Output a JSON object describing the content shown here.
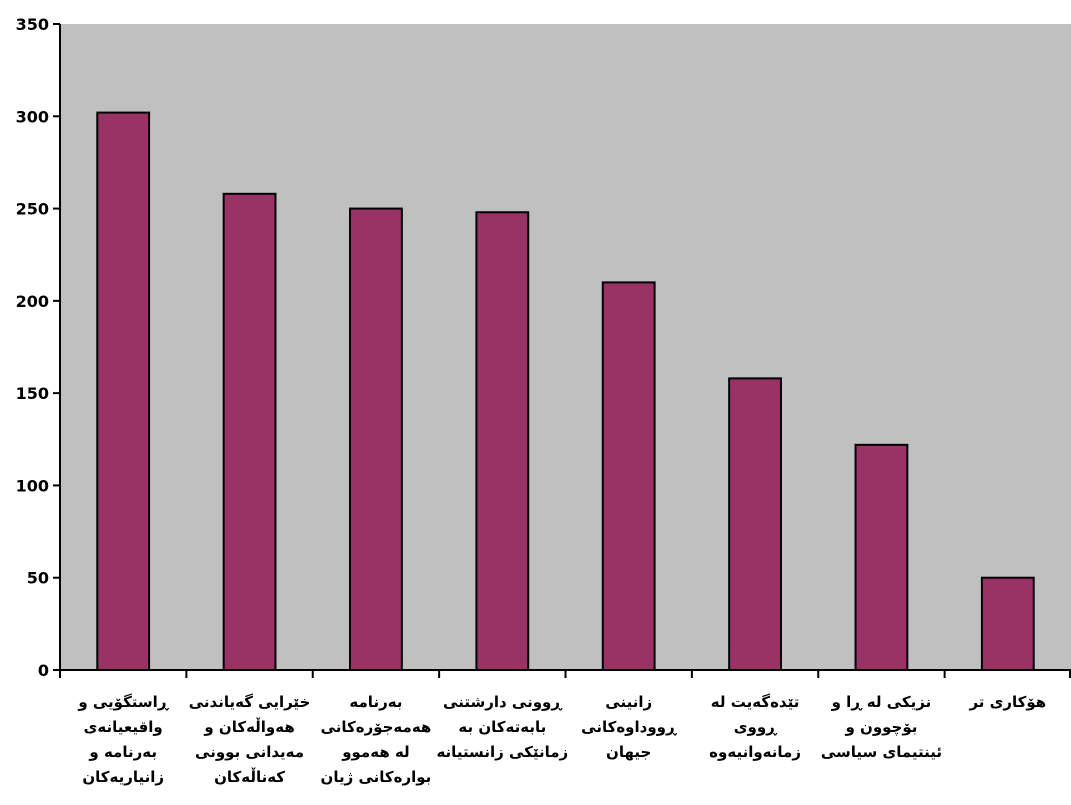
{
  "chart_data": {
    "type": "bar",
    "title": "",
    "xlabel": "",
    "ylabel": "",
    "ylim": [
      0,
      350
    ],
    "yticks": [
      0,
      50,
      100,
      150,
      200,
      250,
      300,
      350
    ],
    "grid": false,
    "legend": "none",
    "categories": [
      [
        "ڕاستگۆیی و",
        "واقیعیانەی",
        "بەرنامە و",
        "زانیاریەکان"
      ],
      [
        "خێرایی گەیاندنی",
        "هەواڵەکان و",
        "مەیدانی بوونی",
        "کەناڵەکان"
      ],
      [
        "بەرنامە",
        "هەمەجۆرەکانی",
        "لە هەموو",
        "بوارەکانی ژیان"
      ],
      [
        "ڕوونی دارشتنی",
        "بابەتەکان بە",
        "زمانێکی زانستیانە"
      ],
      [
        "زانینی",
        "ڕووداوەکانی",
        "جیهان"
      ],
      [
        "تێدەگەیت لە",
        "ڕووی",
        "زمانەوانیەوە"
      ],
      [
        "نزیکی لە ڕا و",
        "بۆچوون و",
        "ئینتیمای سیاسی"
      ],
      [
        "هۆکاری تر"
      ]
    ],
    "values": [
      302,
      258,
      250,
      248,
      210,
      158,
      122,
      50
    ],
    "colors": {
      "plot_background": "#c0c0c0",
      "bar_fill": "#993366",
      "bar_stroke": "#000000"
    }
  }
}
